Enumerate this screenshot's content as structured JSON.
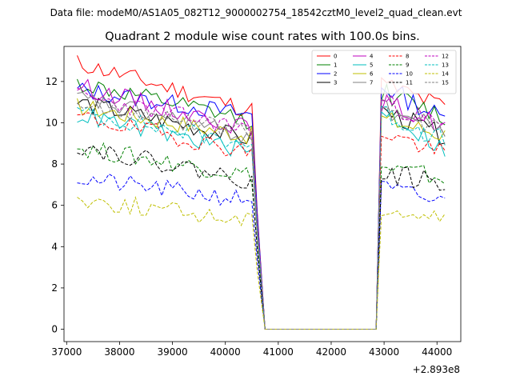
{
  "suptitle": "Data file: modeM0/AS1A05_082T12_9000002754_18542cztM0_level2_quad_clean.evt",
  "chart_data": {
    "type": "line",
    "title": "Quadrant 2 module wise count rates with 100.0s bins.",
    "xlabel": "",
    "ylabel": "",
    "x_offset_label": "+2.893e8",
    "xlim": [
      36950,
      44450
    ],
    "ylim": [
      -0.6,
      13.7
    ],
    "x_ticks": [
      37000,
      38000,
      39000,
      40000,
      41000,
      42000,
      43000,
      44000
    ],
    "y_ticks": [
      0,
      2,
      4,
      6,
      8,
      10,
      12
    ],
    "x_tick_labels": [
      "37000",
      "38000",
      "39000",
      "40000",
      "41000",
      "42000",
      "43000",
      "44000"
    ],
    "y_tick_labels": [
      "0",
      "2",
      "4",
      "6",
      "8",
      "10",
      "12"
    ],
    "legend_position": "top-right",
    "gap": {
      "drop_start": 40650,
      "zero_start": 40750,
      "zero_end": 42850,
      "rise_end": 42950,
      "step": 100
    },
    "t_start": 37200,
    "t_end": 44200,
    "series": [
      {
        "name": "0",
        "color": "#ff0000",
        "style": "solid",
        "v0": 12.9,
        "v1": 10.5,
        "v2": 11.9,
        "v3": 10.7,
        "seed": 11
      },
      {
        "name": "1",
        "color": "#008000",
        "style": "solid",
        "v0": 11.9,
        "v1": 10.0,
        "v2": 11.5,
        "v3": 10.2,
        "seed": 12
      },
      {
        "name": "2",
        "color": "#0000ff",
        "style": "solid",
        "v0": 11.6,
        "v1": 10.3,
        "v2": 11.8,
        "v3": 10.1,
        "seed": 13
      },
      {
        "name": "3",
        "color": "#000000",
        "style": "solid",
        "v0": 11.0,
        "v1": 9.1,
        "v2": 10.6,
        "v3": 9.3,
        "seed": 14
      },
      {
        "name": "4",
        "color": "#bf00bf",
        "style": "solid",
        "v0": 11.8,
        "v1": 9.6,
        "v2": 11.0,
        "v3": 9.8,
        "seed": 15
      },
      {
        "name": "5",
        "color": "#00bfbf",
        "style": "solid",
        "v0": 10.4,
        "v1": 8.5,
        "v2": 10.7,
        "v3": 8.6,
        "seed": 16
      },
      {
        "name": "6",
        "color": "#bfbf00",
        "style": "solid",
        "v0": 10.8,
        "v1": 9.3,
        "v2": 10.2,
        "v3": 9.4,
        "seed": 17
      },
      {
        "name": "7",
        "color": "#808080",
        "style": "solid",
        "v0": 11.2,
        "v1": 9.2,
        "v2": 10.7,
        "v3": 9.6,
        "seed": 18
      },
      {
        "name": "8",
        "color": "#ff0000",
        "style": "dashed",
        "v0": 10.3,
        "v1": 8.5,
        "v2": 9.6,
        "v3": 8.4,
        "seed": 19
      },
      {
        "name": "9",
        "color": "#008000",
        "style": "dashed",
        "v0": 8.8,
        "v1": 7.4,
        "v2": 7.8,
        "v3": 7.3,
        "seed": 20
      },
      {
        "name": "10",
        "color": "#0000ff",
        "style": "dashed",
        "v0": 7.3,
        "v1": 6.2,
        "v2": 6.8,
        "v3": 6.1,
        "seed": 21
      },
      {
        "name": "11",
        "color": "#000000",
        "style": "dashed",
        "v0": 8.9,
        "v1": 7.1,
        "v2": 7.6,
        "v3": 7.0,
        "seed": 22
      },
      {
        "name": "12",
        "color": "#bf00bf",
        "style": "dashed",
        "v0": 11.3,
        "v1": 9.6,
        "v2": 11.1,
        "v3": 9.7,
        "seed": 23
      },
      {
        "name": "13",
        "color": "#00bfbf",
        "style": "dashed",
        "v0": 10.5,
        "v1": 8.9,
        "v2": 10.5,
        "v3": 9.1,
        "seed": 24
      },
      {
        "name": "14",
        "color": "#bfbf00",
        "style": "dashed",
        "v0": 6.3,
        "v1": 5.2,
        "v2": 5.9,
        "v3": 5.3,
        "seed": 25
      },
      {
        "name": "15",
        "color": "#808080",
        "style": "dashed",
        "v0": 11.0,
        "v1": 9.4,
        "v2": 10.8,
        "v3": 9.5,
        "seed": 26
      }
    ]
  }
}
